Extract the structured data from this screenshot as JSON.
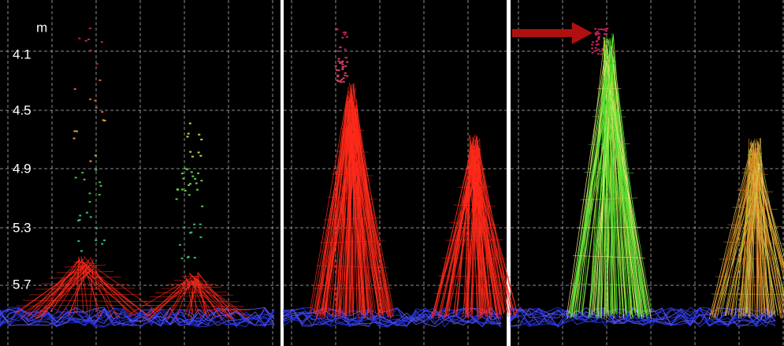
{
  "axis": {
    "unit": "m",
    "labels": [
      "4.1",
      "4.5",
      "4.9",
      "5.3",
      "5.7"
    ]
  }
}
